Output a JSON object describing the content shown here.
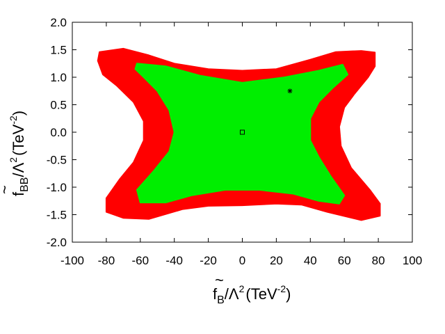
{
  "chart_data": {
    "type": "contour",
    "xlabel": {
      "tilde": "~",
      "base": "f",
      "sub": "B",
      "lambda": "/Λ",
      "lambda_exp": "2",
      "unit": "(TeV",
      "unit_exp": "-2",
      "close": ")"
    },
    "ylabel": {
      "tilde": "~",
      "base": "f",
      "sub": "BB",
      "lambda": "/Λ",
      "lambda_exp": "2",
      "unit": "(TeV",
      "unit_exp": "-2",
      "close": ")"
    },
    "xlim": [
      -100,
      100
    ],
    "ylim": [
      -2.0,
      2.0
    ],
    "x_ticks": [
      "-100",
      "-80",
      "-60",
      "-40",
      "-20",
      "0",
      "20",
      "40",
      "60",
      "80",
      "100"
    ],
    "y_ticks": [
      "2.0",
      "1.5",
      "1.0",
      "0.5",
      "0.0",
      "-0.5",
      "-1.0",
      "-1.5",
      "-2.0"
    ],
    "grid": false,
    "regions": [
      {
        "color": "#ff0000",
        "outline": [
          [
            -84,
            1.46
          ],
          [
            -70,
            1.52
          ],
          [
            -55,
            1.4
          ],
          [
            -40,
            1.25
          ],
          [
            -20,
            1.15
          ],
          [
            0,
            1.12
          ],
          [
            20,
            1.15
          ],
          [
            40,
            1.32
          ],
          [
            55,
            1.46
          ],
          [
            70,
            1.48
          ],
          [
            78,
            1.45
          ],
          [
            78,
            1.2
          ],
          [
            74,
            1.0
          ],
          [
            66,
            0.7
          ],
          [
            60,
            0.45
          ],
          [
            57,
            0.1
          ],
          [
            58,
            -0.25
          ],
          [
            64,
            -0.65
          ],
          [
            75,
            -1.05
          ],
          [
            81,
            -1.3
          ],
          [
            81,
            -1.52
          ],
          [
            70,
            -1.6
          ],
          [
            50,
            -1.45
          ],
          [
            35,
            -1.32
          ],
          [
            20,
            -1.3
          ],
          [
            0,
            -1.33
          ],
          [
            -20,
            -1.34
          ],
          [
            -35,
            -1.4
          ],
          [
            -55,
            -1.58
          ],
          [
            -70,
            -1.56
          ],
          [
            -80,
            -1.45
          ],
          [
            -80,
            -1.2
          ],
          [
            -72,
            -0.85
          ],
          [
            -64,
            -0.55
          ],
          [
            -58,
            -0.15
          ],
          [
            -58,
            0.2
          ],
          [
            -64,
            0.55
          ],
          [
            -74,
            0.85
          ],
          [
            -82,
            1.05
          ],
          [
            -85,
            1.3
          ]
        ]
      },
      {
        "color": "#00ee00",
        "outline": [
          [
            -62,
            1.25
          ],
          [
            -45,
            1.2
          ],
          [
            -25,
            1.03
          ],
          [
            0,
            0.9
          ],
          [
            25,
            1.0
          ],
          [
            45,
            1.12
          ],
          [
            59,
            1.23
          ],
          [
            62,
            1.05
          ],
          [
            53,
            0.8
          ],
          [
            45,
            0.55
          ],
          [
            40,
            0.25
          ],
          [
            40,
            -0.15
          ],
          [
            45,
            -0.45
          ],
          [
            52,
            -0.8
          ],
          [
            60,
            -1.15
          ],
          [
            57,
            -1.3
          ],
          [
            45,
            -1.25
          ],
          [
            30,
            -1.12
          ],
          [
            10,
            -1.05
          ],
          [
            -10,
            -1.05
          ],
          [
            -30,
            -1.15
          ],
          [
            -45,
            -1.28
          ],
          [
            -60,
            -1.28
          ],
          [
            -62,
            -1.05
          ],
          [
            -52,
            -0.7
          ],
          [
            -43,
            -0.35
          ],
          [
            -40,
            0.0
          ],
          [
            -43,
            0.4
          ],
          [
            -50,
            0.75
          ],
          [
            -58,
            1.0
          ],
          [
            -63,
            1.15
          ]
        ]
      }
    ],
    "markers": [
      {
        "symbol": "square",
        "x": 0,
        "y": 0.0
      },
      {
        "symbol": "star",
        "x": 28,
        "y": 0.75
      }
    ]
  }
}
